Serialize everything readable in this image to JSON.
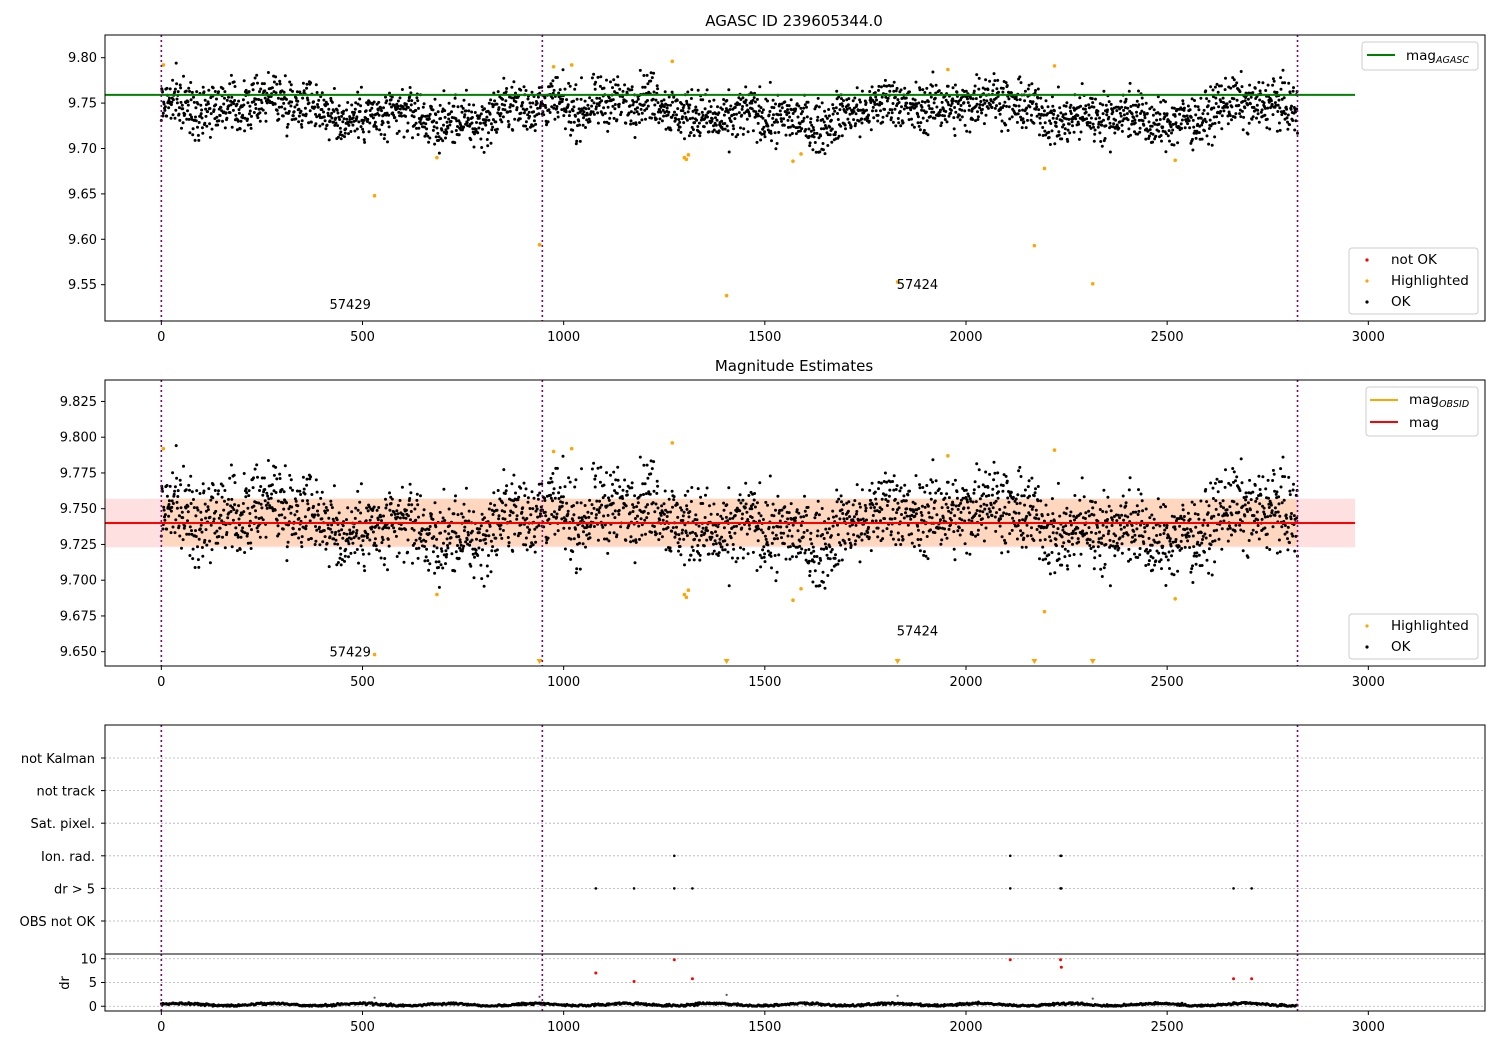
{
  "chart_data": [
    {
      "id": "agasc",
      "type": "scatter",
      "title": "AGASC ID 239605344.0",
      "xlim": [
        -140,
        3290
      ],
      "ylim": [
        9.51,
        9.825
      ],
      "xticks": [
        0,
        500,
        1000,
        1500,
        2000,
        2500,
        3000
      ],
      "yticks": [
        9.55,
        9.6,
        9.65,
        9.7,
        9.75,
        9.8
      ],
      "ytick_labels": [
        "9.55",
        "9.60",
        "9.65",
        "9.70",
        "9.75",
        "9.80"
      ],
      "epoch_lines_x": [
        0,
        947,
        2824
      ],
      "epoch_labels": [
        {
          "text": "57429",
          "x": 418,
          "y": 9.523
        },
        {
          "text": "57424",
          "x": 1828,
          "y": 9.545
        }
      ],
      "mag_agasc": {
        "value": 9.759,
        "x_range": [
          -140,
          2967
        ],
        "color": "#008000"
      },
      "ok_series": {
        "name": "OK",
        "color": "#000000",
        "n": 2824,
        "x_range": [
          0,
          2824
        ],
        "baseline": 9.741,
        "scatter_sd": 0.0135
      },
      "highlighted_series": {
        "name": "Highlighted",
        "color": "#ffa500",
        "points": [
          [
            5,
            9.792
          ],
          [
            530,
            9.648
          ],
          [
            685,
            9.69
          ],
          [
            940,
            9.594
          ],
          [
            975,
            9.79
          ],
          [
            1020,
            9.792
          ],
          [
            1270,
            9.796
          ],
          [
            1300,
            9.69
          ],
          [
            1305,
            9.688
          ],
          [
            1310,
            9.693
          ],
          [
            1405,
            9.538
          ],
          [
            1570,
            9.686
          ],
          [
            1590,
            9.694
          ],
          [
            1830,
            9.553
          ],
          [
            1955,
            9.787
          ],
          [
            2170,
            9.593
          ],
          [
            2195,
            9.678
          ],
          [
            2220,
            9.791
          ],
          [
            2315,
            9.551
          ],
          [
            2520,
            9.687
          ]
        ]
      },
      "legend": [
        {
          "label": "mag",
          "sub": "AGASC",
          "kind": "line",
          "color": "#008000"
        },
        {
          "label": "not OK",
          "kind": "dot",
          "color": "#ff0000"
        },
        {
          "label": "Highlighted",
          "kind": "dot",
          "color": "#ffa500"
        },
        {
          "label": "OK",
          "kind": "dot",
          "color": "#000000"
        }
      ]
    },
    {
      "id": "estimates",
      "type": "scatter",
      "title": "Magnitude Estimates",
      "xlim": [
        -140,
        3290
      ],
      "ylim": [
        9.64,
        9.84
      ],
      "xticks": [
        0,
        500,
        1000,
        1500,
        2000,
        2500,
        3000
      ],
      "yticks": [
        9.65,
        9.675,
        9.7,
        9.725,
        9.75,
        9.775,
        9.8,
        9.825
      ],
      "ytick_labels": [
        "9.650",
        "9.675",
        "9.700",
        "9.725",
        "9.750",
        "9.775",
        "9.800",
        "9.825"
      ],
      "epoch_lines_x": [
        0,
        947,
        2824
      ],
      "epoch_labels": [
        {
          "text": "57429",
          "x": 418,
          "y": 9.6465
        },
        {
          "text": "57424",
          "x": 1828,
          "y": 9.6615
        }
      ],
      "mag_obsid": {
        "value": 9.74,
        "x_range": [
          0,
          2824
        ],
        "band": [
          9.724,
          9.757
        ],
        "color": "#ffa500"
      },
      "mag": {
        "value": 9.74,
        "x_range": [
          -140,
          2967
        ],
        "band": [
          9.723,
          9.757
        ],
        "color": "#ff0000"
      },
      "ok_series": {
        "name": "OK",
        "color": "#000000",
        "n": 2824,
        "x_range": [
          0,
          2824
        ],
        "baseline": 9.741,
        "scatter_sd": 0.0135
      },
      "highlighted_series": {
        "name": "Highlighted",
        "color": "#ffa500",
        "points": [
          [
            5,
            9.792
          ],
          [
            530,
            9.648
          ],
          [
            685,
            9.69
          ],
          [
            975,
            9.79
          ],
          [
            1020,
            9.792
          ],
          [
            1270,
            9.796
          ],
          [
            1300,
            9.69
          ],
          [
            1305,
            9.688
          ],
          [
            1310,
            9.693
          ],
          [
            1570,
            9.686
          ],
          [
            1590,
            9.694
          ],
          [
            1955,
            9.787
          ],
          [
            2195,
            9.678
          ],
          [
            2220,
            9.791
          ],
          [
            2520,
            9.687
          ]
        ]
      },
      "out_of_range_markers_x": [
        940,
        1405,
        1830,
        2170,
        2315
      ],
      "legend": [
        {
          "label": "mag",
          "sub": "OBSID",
          "kind": "line",
          "color": "#ffa500"
        },
        {
          "label": "mag",
          "kind": "line",
          "color": "#ff0000"
        },
        {
          "label": "Highlighted",
          "kind": "dot",
          "color": "#ffa500"
        },
        {
          "label": "OK",
          "kind": "dot",
          "color": "#000000"
        }
      ]
    },
    {
      "id": "flags",
      "type": "scatter",
      "categories": [
        "not Kalman",
        "not track",
        "Sat. pixel.",
        "Ion. rad.",
        "dr > 5",
        "OBS not OK"
      ],
      "points": [
        {
          "category": "Ion. rad.",
          "x": [
            1275,
            2110,
            2235,
            2237
          ]
        },
        {
          "category": "dr > 5",
          "x": [
            1080,
            1175,
            1275,
            1320,
            2110,
            2235,
            2237,
            2665,
            2710
          ]
        }
      ],
      "epoch_lines_x": [
        0,
        947,
        2824
      ]
    },
    {
      "id": "dr",
      "type": "scatter",
      "ylabel": "dr",
      "xlim": [
        -140,
        3290
      ],
      "ylim": [
        -1,
        11
      ],
      "xticks": [
        0,
        500,
        1000,
        1500,
        2000,
        2500,
        3000
      ],
      "yticks": [
        0,
        5,
        10
      ],
      "ytick_labels": [
        "0",
        "5",
        "10"
      ],
      "epoch_lines_x": [
        0,
        947,
        2824
      ],
      "baseline_series": {
        "color": "#000000",
        "n": 2824,
        "x_range": [
          0,
          2824
        ],
        "mean": 0.35
      },
      "red_points": [
        [
          1080,
          7.0
        ],
        [
          1175,
          5.2
        ],
        [
          1275,
          9.8
        ],
        [
          1320,
          5.8
        ],
        [
          2110,
          9.8
        ],
        [
          2235,
          9.8
        ],
        [
          2237,
          8.2
        ],
        [
          2665,
          5.8
        ],
        [
          2710,
          5.8
        ]
      ],
      "grey_points": [
        [
          530,
          1.8
        ],
        [
          940,
          2.0
        ],
        [
          1405,
          2.4
        ],
        [
          1830,
          2.2
        ],
        [
          2315,
          1.6
        ]
      ]
    }
  ]
}
